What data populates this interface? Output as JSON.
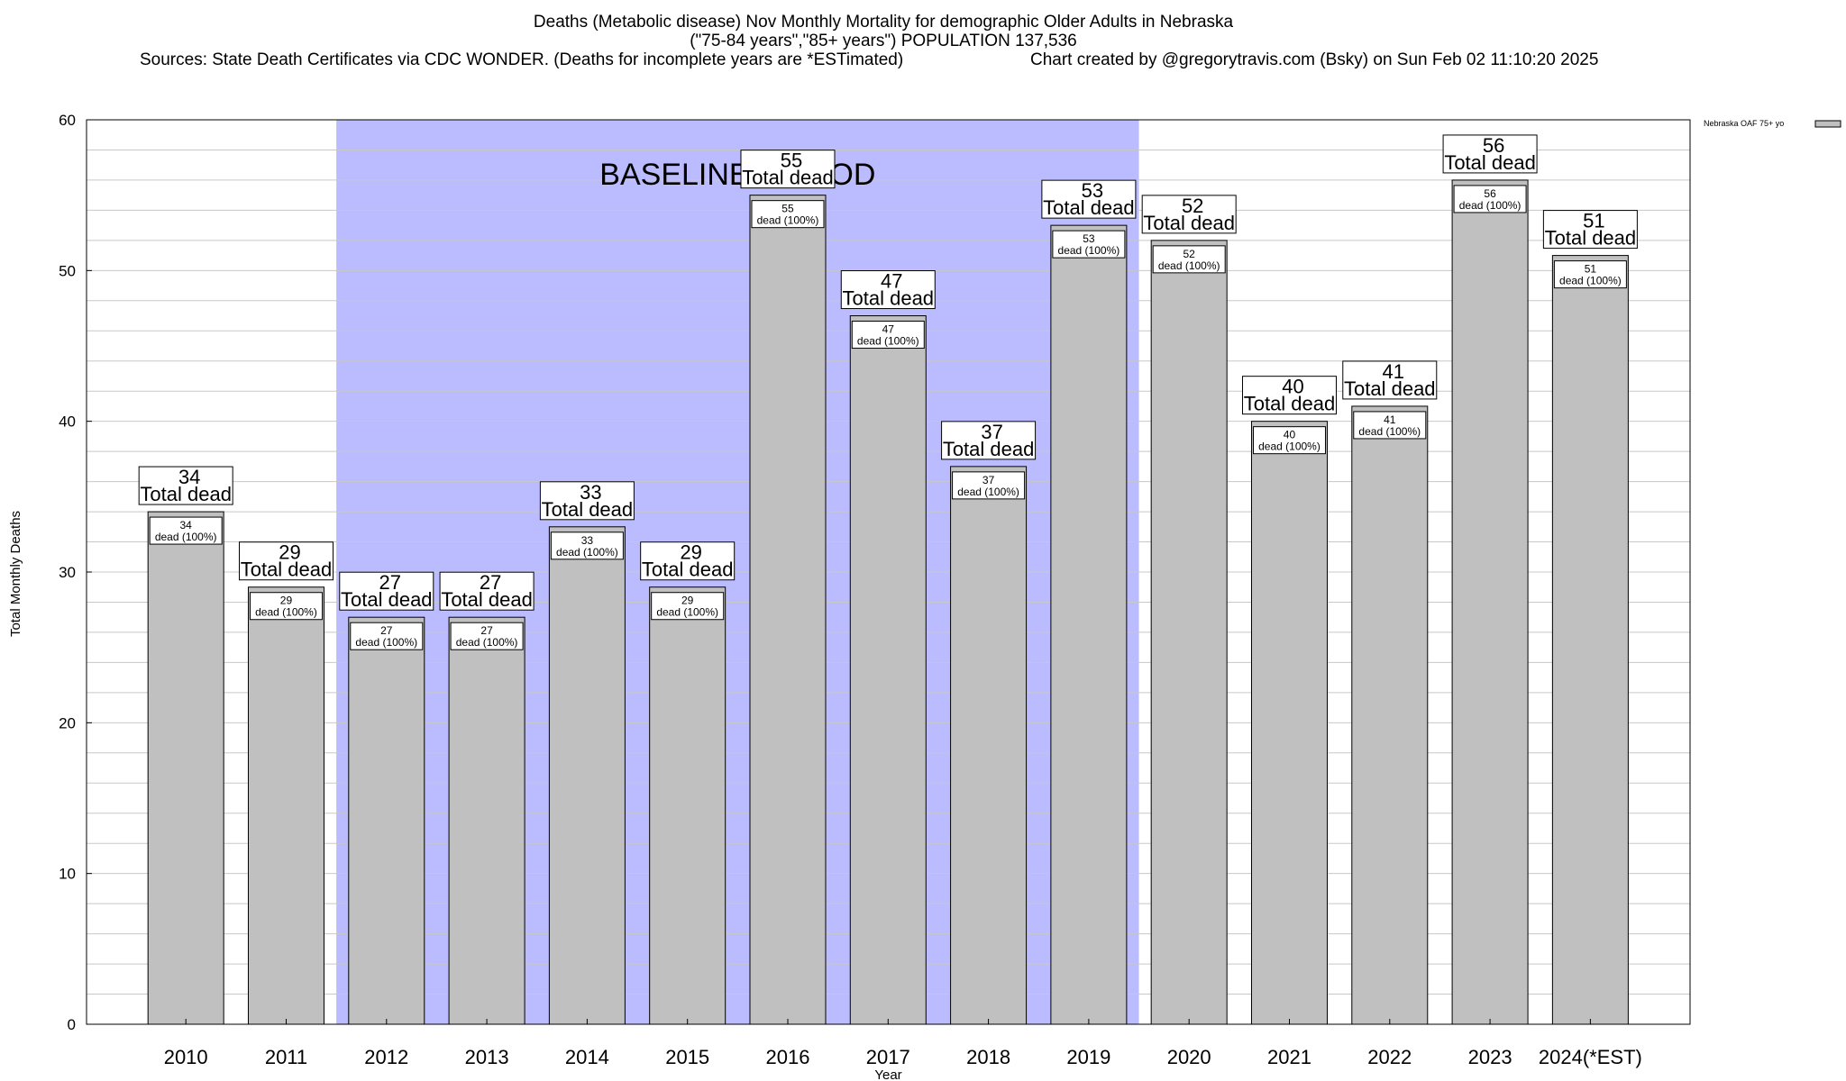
{
  "title_lines": [
    "Deaths (Metabolic disease) Nov Monthly Mortality for demographic Older Adults in Nebraska",
    "(\"75-84 years\",\"85+ years\") POPULATION 137,536",
    "Sources: State Death Certificates via CDC WONDER. (Deaths for incomplete years are *ESTimated)",
    "Chart created by @gregorytravis.com (Bsky) on Sun Feb 02 11:10:20 2025"
  ],
  "chart_data": {
    "type": "bar",
    "categories": [
      "2010",
      "2011",
      "2012",
      "2013",
      "2014",
      "2015",
      "2016",
      "2017",
      "2018",
      "2019",
      "2020",
      "2021",
      "2022",
      "2023",
      "2024(*EST)"
    ],
    "series": [
      {
        "name": "Nebraska OAF 75+ yo",
        "values": [
          34,
          29,
          27,
          27,
          33,
          29,
          55,
          47,
          37,
          53,
          52,
          40,
          41,
          56,
          51
        ]
      }
    ],
    "ylim": [
      0,
      60
    ],
    "yticks": [
      0,
      10,
      20,
      30,
      40,
      50,
      60
    ],
    "xlabel": "Year",
    "ylabel": "Total Monthly Deaths",
    "legend_position": "top-right",
    "grid": true,
    "baseline_period": {
      "label": "BASELINE PERIOD",
      "start": "2012",
      "end": "2019"
    },
    "total_label": "Total dead",
    "dead_label": "dead (100%)",
    "colors": {
      "bar": "#c0c0c0",
      "baseline": "#bbbbff",
      "grid": "#c8c8c8"
    }
  }
}
